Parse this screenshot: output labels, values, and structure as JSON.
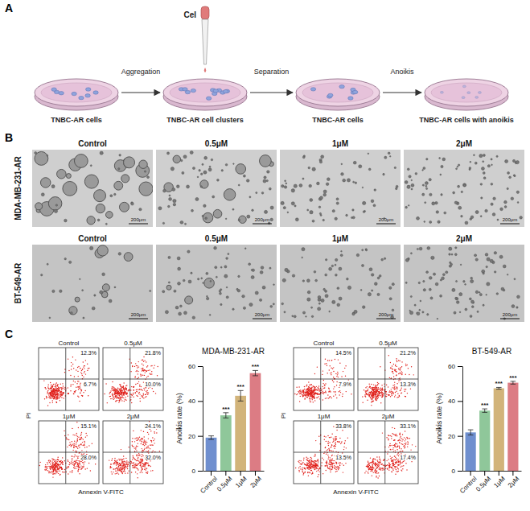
{
  "panel_a": {
    "label": "A",
    "drug": "Cel",
    "stages": [
      "TNBC-AR cells",
      "TNBC-AR cell clusters",
      "TNBC-AR cells",
      "TNBC-AR cells with anoikis"
    ],
    "steps": [
      "Aggregation",
      "Separation",
      "Anoikis"
    ]
  },
  "panel_b": {
    "label": "B",
    "conditions": [
      "Control",
      "0.5μM",
      "1μM",
      "2μM"
    ],
    "cell_lines": [
      "MDA-MB-231-AR",
      "BT-549-AR"
    ],
    "scale_bar": "200μm"
  },
  "panel_c": {
    "label": "C",
    "x_label": "Annexin V-FITC",
    "y_label": "PI",
    "flow": [
      {
        "Q2": [
          "12.3%",
          "21.8%",
          "15.1%",
          "24.1%"
        ],
        "Q4": [
          "6.7%",
          "10.0%",
          "28.0%",
          "32.0%"
        ]
      },
      {
        "Q2": [
          "14.5%",
          "21.2%",
          "33.8%",
          "33.1%"
        ],
        "Q4": [
          "7.9%",
          "13.3%",
          "13.5%",
          "17.4%"
        ]
      }
    ]
  },
  "chart_data": [
    {
      "type": "bar",
      "title": "MDA-MB-231-AR",
      "y_label": "Anoikis rate (%)",
      "categories": [
        "Control",
        "0.5μM",
        "1μM",
        "2μM"
      ],
      "values": [
        19,
        31.8,
        43,
        56
      ],
      "errors": [
        1,
        1.5,
        3,
        1.5
      ],
      "colors": [
        "#6f8fcf",
        "#8fc79a",
        "#d2b47a",
        "#dc7c84"
      ],
      "annotations": [
        null,
        "***",
        "***",
        "***"
      ],
      "ylim": [
        0,
        60
      ],
      "yticks": [
        0,
        20,
        40,
        60
      ]
    },
    {
      "type": "bar",
      "title": "BT-549-AR",
      "y_label": "Anoikis rate (%)",
      "categories": [
        "Control",
        "0.5μM",
        "1μM",
        "2μM"
      ],
      "values": [
        22,
        34.5,
        47.3,
        50.5
      ],
      "errors": [
        1.5,
        1,
        0.5,
        0.8
      ],
      "colors": [
        "#6f8fcf",
        "#8fc79a",
        "#d2b47a",
        "#dc7c84"
      ],
      "annotations": [
        null,
        "***",
        "***",
        "***"
      ],
      "ylim": [
        0,
        60
      ],
      "yticks": [
        0,
        20,
        40,
        60
      ]
    }
  ]
}
